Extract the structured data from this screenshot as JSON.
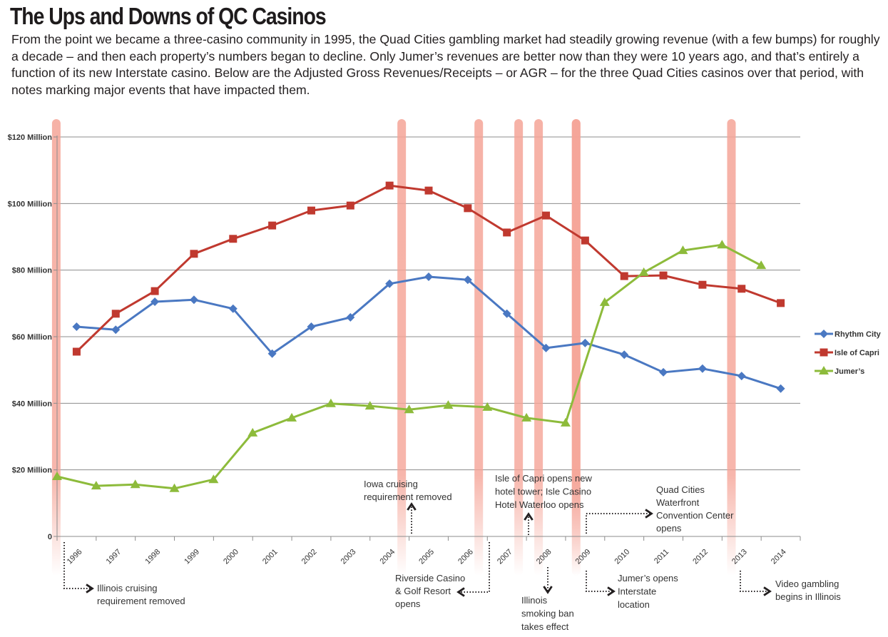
{
  "title": "The Ups and Downs of QC Casinos",
  "intro": "From the point we became a three-casino community in 1995, the Quad Cities gambling market had steadily growing revenue (with a few bumps) for roughly a decade – and then each property’s numbers began to decline. Only Jumer’s revenues are better now than they were 10 years ago, and that’s entirely a function of its new Interstate casino. Below are the Adjusted Gross Revenues/Receipts – or AGR – for the three Quad Cities casinos over that period, with notes marking major events that have impacted them.",
  "chart_data": {
    "type": "line",
    "title": "The Ups and Downs of QC Casinos",
    "xlabel": "",
    "ylabel": "Adjusted Gross Revenue",
    "x": [
      1996,
      1997,
      1998,
      1999,
      2000,
      2001,
      2002,
      2003,
      2004,
      2005,
      2006,
      2007,
      2008,
      2009,
      2010,
      2011,
      2012,
      2013,
      2014
    ],
    "ylim": [
      0,
      120
    ],
    "yticks": [
      0,
      20,
      40,
      60,
      80,
      100,
      120
    ],
    "ytick_labels": [
      "0",
      "$20 Million",
      "$40 Million",
      "$60 Million",
      "$80 Million",
      "$100 Million",
      "$120 Million"
    ],
    "grid": true,
    "legend": "right",
    "series": [
      {
        "name": "Rhythm City",
        "color": "#4a78c2",
        "marker": "diamond",
        "x_offset": 0,
        "values": [
          63.0,
          62.1,
          70.5,
          71.1,
          68.4,
          54.9,
          63.0,
          65.8,
          75.9,
          78.0,
          77.1,
          66.9,
          56.6,
          58.1,
          54.6,
          49.3,
          50.4,
          48.2,
          44.4
        ]
      },
      {
        "name": "Isle of Capri",
        "color": "#c0392f",
        "marker": "square",
        "x_offset": 0,
        "values": [
          55.5,
          66.9,
          73.7,
          84.9,
          89.4,
          93.4,
          97.9,
          99.4,
          105.4,
          103.9,
          98.6,
          91.3,
          96.4,
          88.9,
          78.2,
          78.4,
          75.6,
          74.4,
          70.1
        ]
      },
      {
        "name": "Jumer’s",
        "color": "#8dbb3b",
        "marker": "triangle",
        "x_offset": -0.5,
        "values": [
          18.0,
          15.2,
          15.6,
          14.4,
          17.1,
          31.1,
          35.6,
          39.9,
          39.2,
          38.1,
          39.4,
          38.8,
          35.6,
          34.1,
          70.3,
          79.3,
          85.9,
          87.6,
          81.4
        ]
      }
    ],
    "event_color": "#f5a497",
    "events": [
      {
        "x": 1995.48,
        "label": "Illinois cruising requirement removed"
      },
      {
        "x": 2004.31,
        "label": "Iowa cruising requirement removed"
      },
      {
        "x": 2006.28,
        "label": "Riverside Casino & Golf Resort opens"
      },
      {
        "x": 2007.3,
        "label": "Isle of Capri opens new hotel tower; Isle Casino Hotel Waterloo opens"
      },
      {
        "x": 2007.81,
        "label": "Illinois smoking ban takes effect"
      },
      {
        "x": 2008.77,
        "label": "Quad Cities Waterfront Convention Center opens"
      },
      {
        "x": 2008.77,
        "label": "Jumer’s opens Interstate location"
      },
      {
        "x": 2012.74,
        "label": "Video gambling begins in Illinois"
      }
    ]
  },
  "annotations": [
    {
      "lines": [
        "Illinois cruising",
        "requirement removed"
      ]
    },
    {
      "lines": [
        "Iowa cruising",
        "requirement removed"
      ]
    },
    {
      "lines": [
        "Riverside Casino",
        "& Golf Resort",
        "opens"
      ]
    },
    {
      "lines": [
        "Isle of Capri opens new",
        "hotel tower; Isle Casino",
        "Hotel Waterloo opens"
      ]
    },
    {
      "lines": [
        "Illinois",
        "smoking ban",
        "takes effect"
      ]
    },
    {
      "lines": [
        "Quad Cities",
        "Waterfront",
        "Convention Center",
        "opens"
      ]
    },
    {
      "lines": [
        "Jumer’s opens",
        "Interstate",
        "location"
      ]
    },
    {
      "lines": [
        "Video gambling",
        "begins in Illinois"
      ]
    }
  ]
}
